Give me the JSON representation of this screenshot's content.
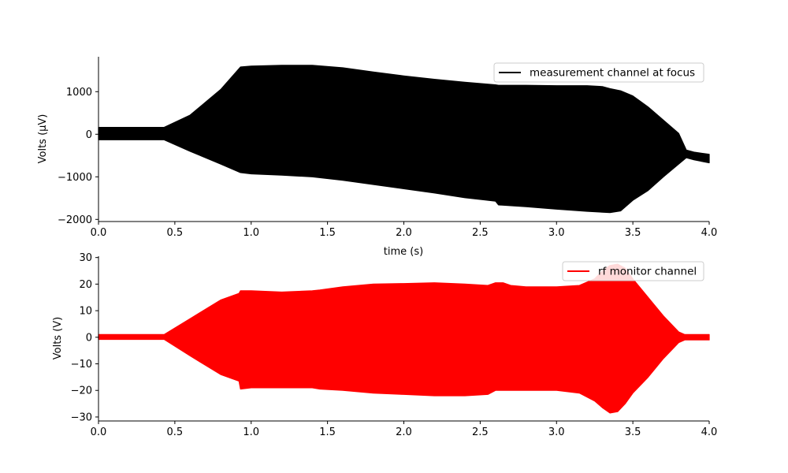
{
  "chart_data": [
    {
      "type": "line",
      "xlabel": "time (s)",
      "ylabel": "Volts (μV)",
      "xlim": [
        0,
        4
      ],
      "ylim": [
        -2050,
        1820
      ],
      "xticks": [
        0.0,
        0.5,
        1.0,
        1.5,
        2.0,
        2.5,
        3.0,
        3.5,
        4.0
      ],
      "xtick_labels": [
        "0.0",
        "0.5",
        "1.0",
        "1.5",
        "2.0",
        "2.5",
        "3.0",
        "3.5",
        "4.0"
      ],
      "yticks": [
        1000,
        0,
        -1000,
        -2000
      ],
      "ytick_labels": [
        "1000",
        "0",
        "−1000",
        "−2000"
      ],
      "legend_position": "top-right",
      "grid": false,
      "series": [
        {
          "name": "measurement channel at focus",
          "color": "#000000",
          "render": "dense oscillating signal shown by its envelope",
          "envelope": {
            "x": [
              0.0,
              0.43,
              0.6,
              0.8,
              0.93,
              1.0,
              1.2,
              1.4,
              1.6,
              1.8,
              2.0,
              2.2,
              2.4,
              2.6,
              2.62,
              2.8,
              3.0,
              3.2,
              3.3,
              3.35,
              3.42,
              3.5,
              3.6,
              3.7,
              3.8,
              3.85,
              3.9,
              4.0
            ],
            "upper": [
              160,
              160,
              450,
              1050,
              1580,
              1600,
              1620,
              1620,
              1560,
              1460,
              1370,
              1290,
              1220,
              1160,
              1150,
              1150,
              1140,
              1140,
              1120,
              1070,
              1020,
              900,
              640,
              330,
              20,
              -370,
              -420,
              -470
            ],
            "lower": [
              -130,
              -130,
              -400,
              -700,
              -900,
              -930,
              -960,
              -1000,
              -1080,
              -1180,
              -1280,
              -1380,
              -1490,
              -1570,
              -1660,
              -1700,
              -1760,
              -1810,
              -1830,
              -1840,
              -1800,
              -1550,
              -1320,
              -1000,
              -700,
              -550,
              -600,
              -670
            ]
          }
        }
      ]
    },
    {
      "type": "line",
      "xlabel": "",
      "ylabel": "Volts (V)",
      "xlim": [
        0,
        4
      ],
      "ylim": [
        -31.5,
        30.5
      ],
      "xticks": [
        0.0,
        0.5,
        1.0,
        1.5,
        2.0,
        2.5,
        3.0,
        3.5,
        4.0
      ],
      "xtick_labels": [
        "0.0",
        "0.5",
        "1.0",
        "1.5",
        "2.0",
        "2.5",
        "3.0",
        "3.5",
        "4.0"
      ],
      "yticks": [
        30,
        20,
        10,
        0,
        -10,
        -20,
        -30
      ],
      "ytick_labels": [
        "30",
        "20",
        "10",
        "0",
        "−10",
        "−20",
        "−30"
      ],
      "legend_position": "top-right",
      "grid": false,
      "series": [
        {
          "name": "rf monitor channel",
          "color": "#ff0000",
          "render": "dense oscillating signal shown by its envelope",
          "envelope": {
            "x": [
              0.0,
              0.43,
              0.6,
              0.8,
              0.92,
              0.93,
              1.0,
              1.2,
              1.4,
              1.45,
              1.6,
              1.8,
              2.0,
              2.2,
              2.4,
              2.55,
              2.6,
              2.65,
              2.7,
              2.8,
              3.0,
              3.15,
              3.25,
              3.3,
              3.35,
              3.4,
              3.45,
              3.5,
              3.6,
              3.7,
              3.8,
              3.84,
              3.85,
              4.0
            ],
            "upper": [
              1,
              1,
              7,
              14,
              16.5,
              17.5,
              17.5,
              17,
              17.5,
              17.8,
              19,
              20,
              20.2,
              20.5,
              20,
              19.5,
              20.5,
              20.5,
              19.5,
              19,
              19,
              19.5,
              22,
              25,
              27,
              27.5,
              26,
              22,
              15,
              8,
              2,
              1,
              1,
              1
            ],
            "lower": [
              -0.8,
              -0.8,
              -7,
              -14,
              -16.5,
              -19.5,
              -19,
              -19,
              -19,
              -19.5,
              -20,
              -21,
              -21.5,
              -22,
              -22,
              -21.5,
              -20,
              -20,
              -20,
              -20,
              -20,
              -21,
              -24,
              -26.5,
              -28.5,
              -28,
              -25,
              -21,
              -15,
              -8,
              -2,
              -1,
              -1,
              -1
            ]
          }
        }
      ]
    }
  ]
}
